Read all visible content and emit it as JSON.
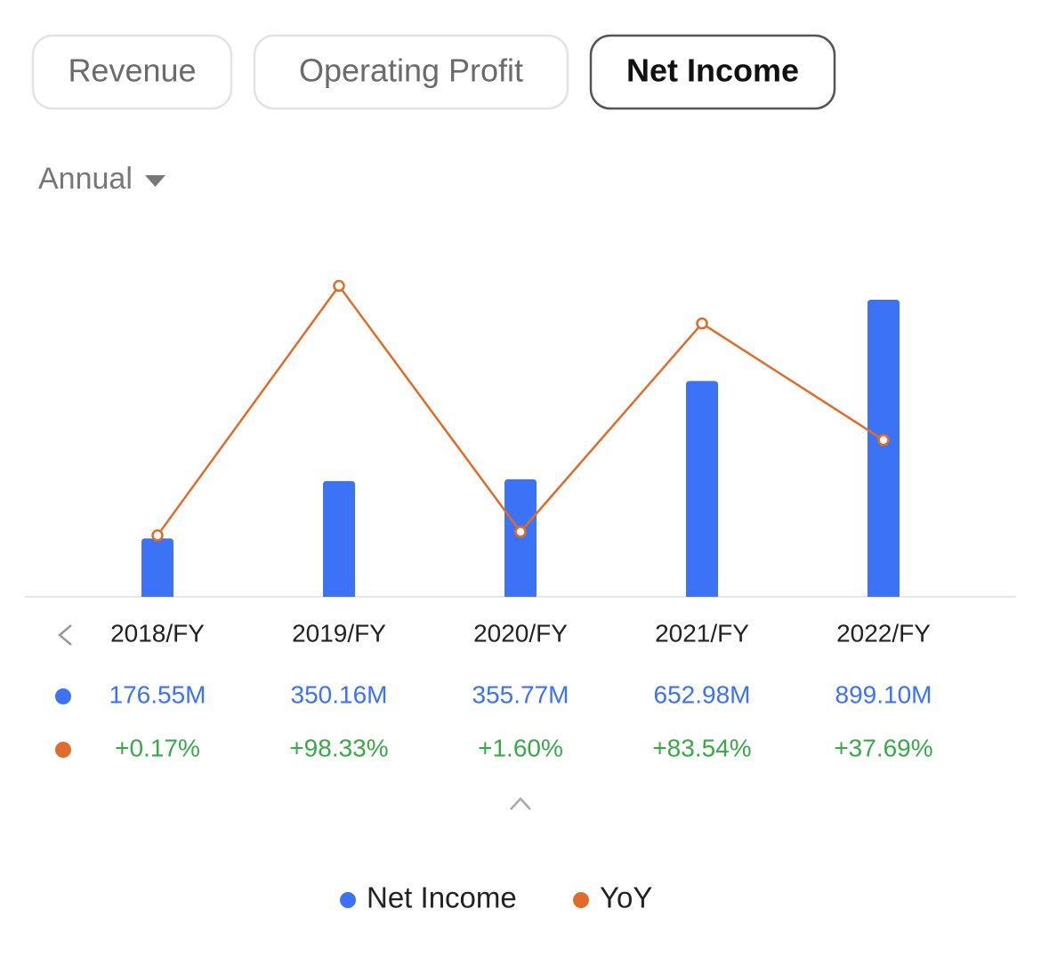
{
  "tabs": [
    "Revenue",
    "Operating Profit",
    "Net Income"
  ],
  "period": "Annual",
  "chart_data": {
    "type": "bar",
    "categories": [
      "2018/FY",
      "2019/FY",
      "2020/FY",
      "2021/FY",
      "2022/FY"
    ],
    "ylim": [
      0,
      1000
    ],
    "y2lim": [
      -24,
      106
    ],
    "series": [
      {
        "name": "Net Income",
        "type": "bar",
        "color": "#3b72f6",
        "values": [
          176.55,
          350.16,
          355.77,
          652.98,
          899.1
        ],
        "value_labels": [
          "176.55M",
          "350.16M",
          "355.77M",
          "652.98M",
          "899.10M"
        ]
      },
      {
        "name": "YoY",
        "type": "line",
        "axis": "y2",
        "color": "#e06c2a",
        "values": [
          0.17,
          98.33,
          1.6,
          83.54,
          37.69
        ],
        "value_labels": [
          "+0.17%",
          "+98.33%",
          "+1.60%",
          "+83.54%",
          "+37.69%"
        ]
      }
    ]
  }
}
